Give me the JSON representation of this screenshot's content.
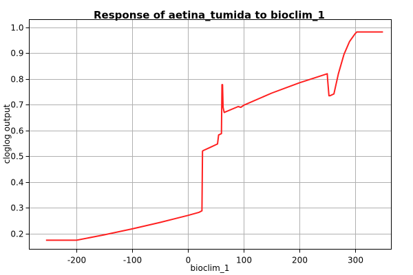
{
  "chart_data": {
    "type": "line",
    "title": "Response of aetina_tumida to bioclim_1",
    "xlabel": "bioclim_1",
    "ylabel": "cloglog output",
    "xlim": [
      -285,
      365
    ],
    "ylim": [
      0.14,
      1.03
    ],
    "x_ticks": [
      -200,
      -100,
      0,
      100,
      200,
      300
    ],
    "y_ticks": [
      0.2,
      0.3,
      0.4,
      0.5,
      0.6,
      0.7,
      0.8,
      0.9,
      1.0
    ],
    "x_tick_labels": [
      "-200",
      "-100",
      "0",
      "100",
      "200",
      "300"
    ],
    "y_tick_labels": [
      "0.2",
      "0.3",
      "0.4",
      "0.5",
      "0.6",
      "0.7",
      "0.8",
      "0.9",
      "1.0"
    ],
    "grid": true,
    "color": "#ff2020",
    "series": [
      {
        "x": [
          -255,
          -200,
          -150,
          -100,
          -50,
          0,
          20,
          25,
          26,
          27,
          40,
          50,
          53,
          55,
          60,
          61,
          62,
          63,
          65,
          90,
          95,
          100,
          150,
          200,
          250,
          251,
          253,
          255,
          262,
          270,
          280,
          290,
          300,
          303,
          350
        ],
        "y": [
          0.175,
          0.175,
          0.196,
          0.219,
          0.244,
          0.271,
          0.283,
          0.289,
          0.52,
          0.522,
          0.535,
          0.545,
          0.548,
          0.583,
          0.588,
          0.778,
          0.778,
          0.69,
          0.67,
          0.693,
          0.69,
          0.698,
          0.745,
          0.785,
          0.82,
          0.79,
          0.735,
          0.735,
          0.742,
          0.82,
          0.895,
          0.945,
          0.975,
          0.982,
          0.982
        ]
      }
    ]
  }
}
